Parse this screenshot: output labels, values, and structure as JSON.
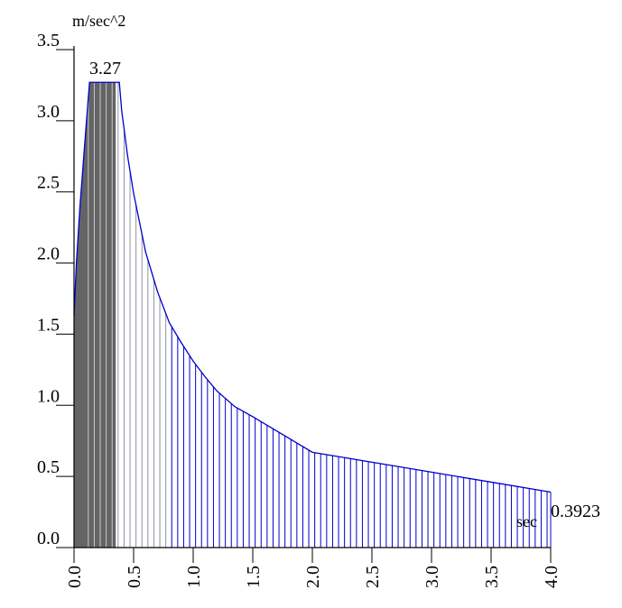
{
  "chart_data": {
    "type": "area",
    "ylabel": "m/sec^2",
    "xlabel": "sec",
    "xlim": [
      0.0,
      4.0
    ],
    "ylim": [
      0.0,
      3.5
    ],
    "x_ticks": [
      "0.0",
      "0.5",
      "1.0",
      "1.5",
      "2.0",
      "2.5",
      "3.0",
      "3.5",
      "4.0"
    ],
    "y_ticks": [
      "0.0",
      "0.5",
      "1.0",
      "1.5",
      "2.0",
      "2.5",
      "3.0",
      "3.5"
    ],
    "peak_label": "3.27",
    "end_label": "0.3923",
    "series": [
      {
        "x": [
          0.0,
          0.02,
          0.05,
          0.1,
          0.13,
          0.15,
          0.2,
          0.25,
          0.3,
          0.35,
          0.38,
          0.4,
          0.45,
          0.5,
          0.6,
          0.7,
          0.8,
          0.9,
          1.0,
          1.1,
          1.2,
          1.35,
          1.5,
          1.7,
          2.0,
          2.5,
          3.0,
          3.5,
          4.0
        ],
        "y": [
          1.63,
          2.0,
          2.4,
          2.95,
          3.27,
          3.27,
          3.27,
          3.27,
          3.27,
          3.27,
          3.27,
          3.07,
          2.75,
          2.49,
          2.08,
          1.8,
          1.58,
          1.44,
          1.31,
          1.2,
          1.1,
          0.99,
          0.92,
          0.82,
          0.67,
          0.6,
          0.53,
          0.46,
          0.39
        ]
      }
    ],
    "shaded_until": 0.35,
    "colors": {
      "line": "#0000cc",
      "hatch": "#0000cc",
      "fill_dark": "#646464",
      "fill_light": "#808080",
      "axis": "#000000"
    }
  }
}
